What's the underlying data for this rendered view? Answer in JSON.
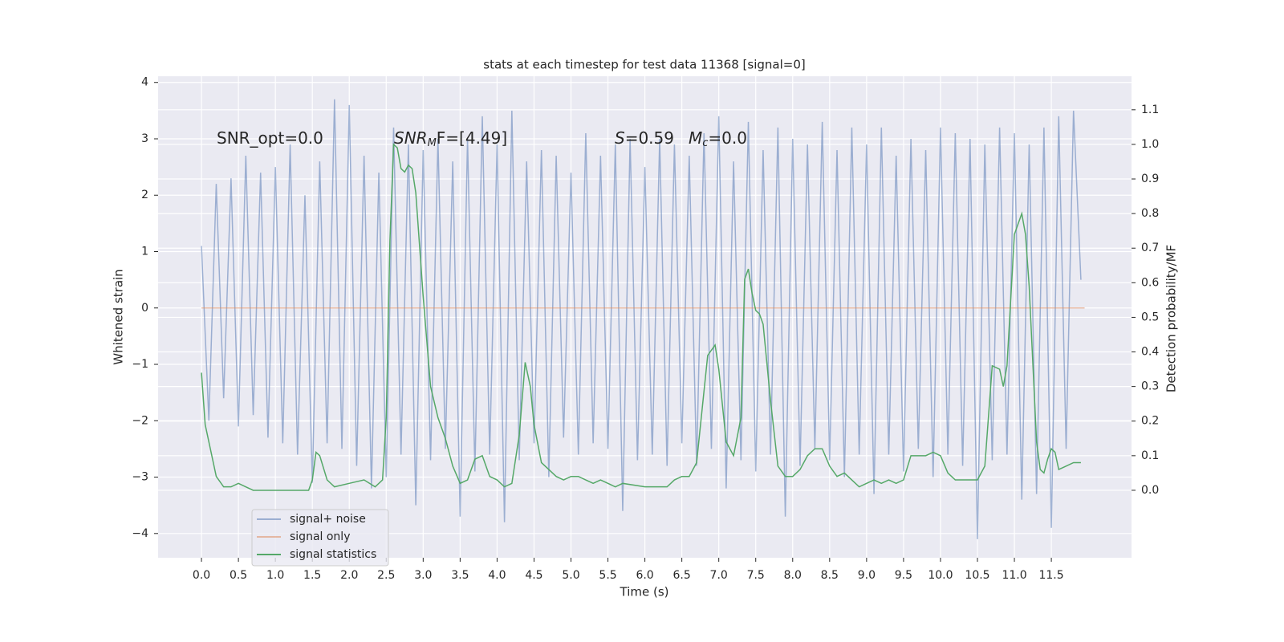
{
  "chart_data": {
    "type": "line",
    "title": "stats at each timestep for test data 11368 [signal=0]",
    "x_label": "Time (s)",
    "y_label": "Whitened strain",
    "y2_label": "Detection probability/MF",
    "xlim": [
      -0.587,
      12.585
    ],
    "ylim": [
      -4.43,
      4.11
    ],
    "y2lim": [
      -0.195,
      1.197
    ],
    "xticks": [
      {
        "value": 0,
        "label": "0.0"
      },
      0.5,
      {
        "value": 1,
        "label": "1.0"
      },
      1.5,
      {
        "value": 2,
        "label": "2.0"
      },
      2.5,
      {
        "value": 3,
        "label": "3.0"
      },
      3.5,
      {
        "value": 4,
        "label": "4.0"
      },
      4.5,
      {
        "value": 5,
        "label": "5.0"
      },
      5.5,
      {
        "value": 6,
        "label": "6.0"
      },
      6.5,
      {
        "value": 7,
        "label": "7.0"
      },
      7.5,
      {
        "value": 8,
        "label": "8.0"
      },
      8.5,
      {
        "value": 9,
        "label": "9.0"
      },
      9.5,
      {
        "value": 10,
        "label": "10.0"
      },
      10.5,
      {
        "value": 11,
        "label": "11.0"
      },
      11.5
    ],
    "yticks": [
      {
        "value": -4,
        "label": "−4"
      },
      {
        "value": -3,
        "label": "−3"
      },
      {
        "value": -2,
        "label": "−2"
      },
      {
        "value": -1,
        "label": "−1"
      },
      0,
      1,
      2,
      3,
      4
    ],
    "y2ticks": [
      {
        "value": 0,
        "label": "0.0"
      },
      0.1,
      0.2,
      0.3,
      0.4,
      0.5,
      0.6,
      0.7,
      0.8,
      0.9,
      {
        "value": 1,
        "label": "1.0"
      },
      1.1
    ],
    "grid": true,
    "legend": "lower left",
    "annotations": [
      [
        "SNR_opt=0.0"
      ],
      [
        "SNR",
        "M",
        "F=[4.49]"
      ],
      [
        "S",
        "=0.59"
      ],
      [
        "M",
        "c",
        "=0.0"
      ]
    ],
    "series": [
      {
        "name": "signal+ noise",
        "color": "#4c72b0",
        "opacity": 0.5,
        "x": [
          0.0,
          0.1,
          0.2,
          0.3,
          0.4,
          0.5,
          0.6,
          0.7,
          0.8,
          0.9,
          1.0,
          1.1,
          1.2,
          1.3,
          1.4,
          1.5,
          1.6,
          1.7,
          1.8,
          1.9,
          2.0,
          2.1,
          2.2,
          2.3,
          2.4,
          2.5,
          2.6,
          2.7,
          2.8,
          2.9,
          3.0,
          3.1,
          3.2,
          3.3,
          3.4,
          3.5,
          3.6,
          3.7,
          3.8,
          3.9,
          4.0,
          4.1,
          4.2,
          4.3,
          4.4,
          4.5,
          4.6,
          4.7,
          4.8,
          4.9,
          5.0,
          5.1,
          5.2,
          5.3,
          5.4,
          5.5,
          5.6,
          5.7,
          5.8,
          5.9,
          6.0,
          6.1,
          6.2,
          6.3,
          6.4,
          6.5,
          6.6,
          6.7,
          6.8,
          6.9,
          7.0,
          7.1,
          7.2,
          7.3,
          7.4,
          7.5,
          7.6,
          7.7,
          7.8,
          7.9,
          8.0,
          8.1,
          8.2,
          8.3,
          8.4,
          8.5,
          8.6,
          8.7,
          8.8,
          8.9,
          9.0,
          9.1,
          9.2,
          9.3,
          9.4,
          9.5,
          9.6,
          9.7,
          9.8,
          9.9,
          10.0,
          10.1,
          10.2,
          10.3,
          10.4,
          10.5,
          10.6,
          10.7,
          10.8,
          10.9,
          11.0,
          11.1,
          11.2,
          11.3,
          11.4,
          11.5,
          11.6,
          11.7,
          11.8,
          11.9
        ],
        "values": [
          1.1,
          -2.0,
          2.2,
          -1.6,
          2.3,
          -2.1,
          2.7,
          -1.9,
          2.4,
          -2.3,
          2.5,
          -2.4,
          2.9,
          -2.6,
          2.0,
          -3.1,
          2.6,
          -2.4,
          3.7,
          -2.5,
          3.6,
          -2.8,
          2.7,
          -3.2,
          2.4,
          -3.0,
          3.2,
          -2.6,
          2.9,
          -3.5,
          2.8,
          -2.7,
          3.0,
          -2.5,
          2.6,
          -3.7,
          3.0,
          -2.9,
          3.4,
          -2.6,
          2.9,
          -3.8,
          3.5,
          -2.7,
          2.6,
          -2.4,
          2.8,
          -3.0,
          2.7,
          -2.3,
          2.4,
          -2.6,
          3.1,
          -2.4,
          2.7,
          -2.5,
          2.9,
          -3.6,
          3.0,
          -2.7,
          2.5,
          -2.6,
          3.0,
          -2.8,
          2.9,
          -2.4,
          2.7,
          -2.8,
          3.1,
          -2.5,
          3.4,
          -3.2,
          2.6,
          -2.7,
          3.3,
          -2.9,
          2.8,
          -2.6,
          3.2,
          -3.7,
          3.0,
          -2.8,
          2.9,
          -2.5,
          3.3,
          -2.7,
          2.8,
          -3.0,
          3.2,
          -2.6,
          2.9,
          -3.3,
          3.2,
          -2.6,
          2.7,
          -2.9,
          3.0,
          -2.5,
          2.8,
          -3.0,
          3.2,
          -2.6,
          3.1,
          -2.8,
          3.0,
          -4.1,
          2.9,
          -2.7,
          3.2,
          -2.6,
          3.1,
          -3.4,
          2.9,
          -3.3,
          3.2,
          -3.9,
          3.4,
          -2.5,
          3.5,
          0.5
        ]
      },
      {
        "name": "signal only",
        "color": "#dd8452",
        "opacity": 0.5,
        "x": [
          0.0,
          11.95
        ],
        "values": [
          0,
          0
        ]
      },
      {
        "name": "signal statistics",
        "color": "#55a868",
        "opacity": 1,
        "axis": "y2",
        "x": [
          0.0,
          0.05,
          0.1,
          0.2,
          0.3,
          0.4,
          0.5,
          0.6,
          0.7,
          0.8,
          1.0,
          1.2,
          1.45,
          1.5,
          1.55,
          1.6,
          1.7,
          1.8,
          2.0,
          2.2,
          2.35,
          2.45,
          2.5,
          2.55,
          2.6,
          2.65,
          2.7,
          2.75,
          2.8,
          2.85,
          2.9,
          3.0,
          3.1,
          3.2,
          3.3,
          3.4,
          3.5,
          3.6,
          3.7,
          3.8,
          3.9,
          4.0,
          4.1,
          4.2,
          4.3,
          4.38,
          4.45,
          4.5,
          4.6,
          4.7,
          4.8,
          4.9,
          5.0,
          5.1,
          5.2,
          5.3,
          5.4,
          5.5,
          5.6,
          5.7,
          6.0,
          6.3,
          6.4,
          6.5,
          6.6,
          6.7,
          6.85,
          6.95,
          7.0,
          7.1,
          7.2,
          7.3,
          7.35,
          7.4,
          7.45,
          7.5,
          7.55,
          7.6,
          7.7,
          7.8,
          7.9,
          8.0,
          8.1,
          8.2,
          8.3,
          8.4,
          8.5,
          8.6,
          8.7,
          8.8,
          8.9,
          9.0,
          9.1,
          9.2,
          9.3,
          9.4,
          9.5,
          9.6,
          9.7,
          9.8,
          9.9,
          10.0,
          10.1,
          10.2,
          10.3,
          10.4,
          10.5,
          10.6,
          10.7,
          10.8,
          10.85,
          10.9,
          11.0,
          11.1,
          11.15,
          11.2,
          11.3,
          11.35,
          11.4,
          11.45,
          11.5,
          11.55,
          11.6,
          11.7,
          11.8,
          11.9
        ],
        "values": [
          0.34,
          0.19,
          0.14,
          0.04,
          0.01,
          0.01,
          0.02,
          0.01,
          0.0,
          0.0,
          0.0,
          0.0,
          0.0,
          0.03,
          0.11,
          0.1,
          0.03,
          0.01,
          0.02,
          0.03,
          0.01,
          0.03,
          0.21,
          0.72,
          1.0,
          0.99,
          0.93,
          0.92,
          0.94,
          0.93,
          0.86,
          0.56,
          0.3,
          0.21,
          0.15,
          0.07,
          0.02,
          0.03,
          0.09,
          0.1,
          0.04,
          0.03,
          0.01,
          0.02,
          0.16,
          0.37,
          0.3,
          0.19,
          0.08,
          0.06,
          0.04,
          0.03,
          0.04,
          0.04,
          0.03,
          0.02,
          0.03,
          0.02,
          0.01,
          0.02,
          0.01,
          0.01,
          0.03,
          0.04,
          0.04,
          0.08,
          0.39,
          0.42,
          0.35,
          0.14,
          0.1,
          0.21,
          0.61,
          0.64,
          0.57,
          0.52,
          0.51,
          0.48,
          0.26,
          0.07,
          0.04,
          0.04,
          0.06,
          0.1,
          0.12,
          0.12,
          0.07,
          0.04,
          0.05,
          0.03,
          0.01,
          0.02,
          0.03,
          0.02,
          0.03,
          0.02,
          0.03,
          0.1,
          0.1,
          0.1,
          0.11,
          0.1,
          0.05,
          0.03,
          0.03,
          0.03,
          0.03,
          0.07,
          0.36,
          0.35,
          0.3,
          0.36,
          0.74,
          0.8,
          0.74,
          0.59,
          0.14,
          0.06,
          0.05,
          0.09,
          0.12,
          0.11,
          0.06,
          0.07,
          0.08,
          0.08
        ]
      }
    ]
  }
}
